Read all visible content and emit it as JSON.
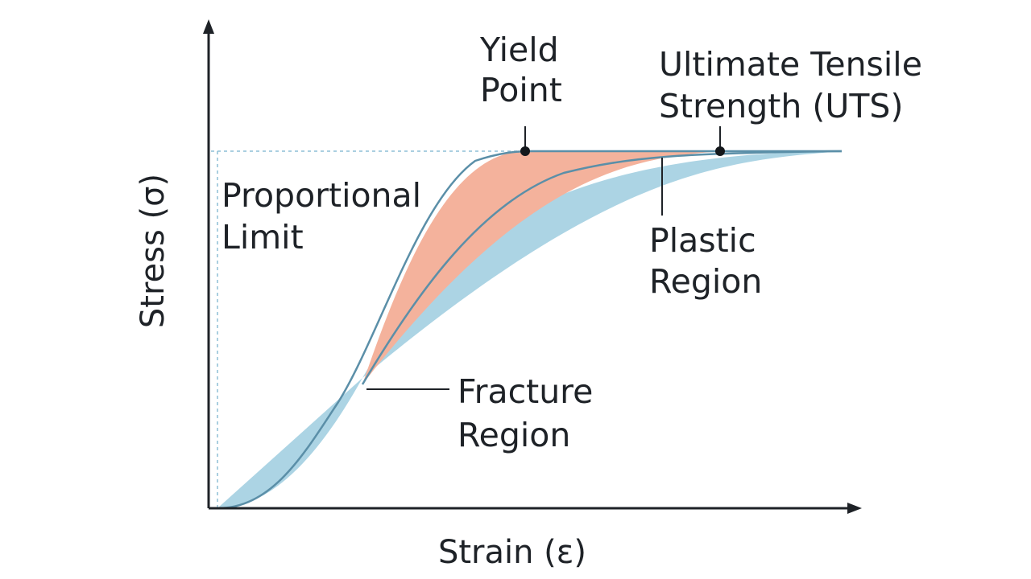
{
  "diagram": {
    "x_axis_label": "Strain (ε)",
    "y_axis_label": "Stress (σ)",
    "annotations": {
      "yield_point": [
        "Yield",
        "Point"
      ],
      "uts": [
        "Ultimate Tensile",
        "Strength (UTS)"
      ],
      "proportional_limit": [
        "Proportional",
        "Limit"
      ],
      "plastic_region": [
        "Plastic",
        "Region"
      ],
      "fracture_region": [
        "Fracture",
        "Region"
      ]
    },
    "colors": {
      "axis": "#1e2227",
      "curve": "#5b8fa8",
      "orange_fill": "#f4b29c",
      "blue_fill": "#acd4e4",
      "dashed_guide": "#8dbfd6",
      "marker": "#14181c",
      "text": "#1e2227"
    }
  }
}
